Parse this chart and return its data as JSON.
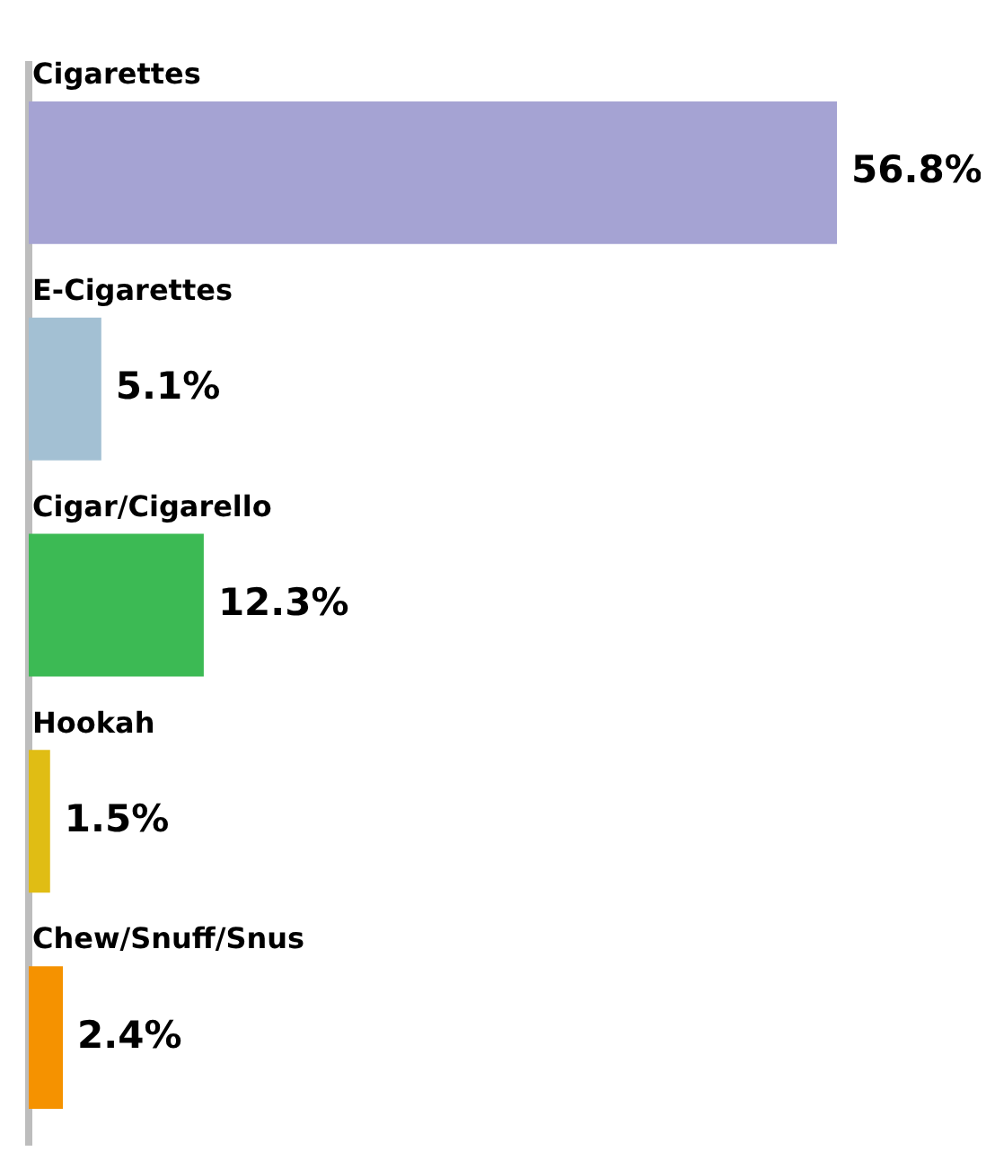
{
  "chart_data": {
    "type": "bar",
    "orientation": "horizontal",
    "categories": [
      "Cigarettes",
      "E-Cigarettes",
      "Cigar/Cigarello",
      "Hookah",
      "Chew/Snuff/Snus"
    ],
    "values": [
      56.8,
      5.1,
      12.3,
      1.5,
      2.4
    ],
    "colors": [
      "#a5a3d3",
      "#a3c0d3",
      "#3cba54",
      "#e0bd14",
      "#f59200"
    ],
    "value_labels": [
      "56.8%",
      "5.1%",
      "12.3%",
      "1.5%",
      "2.4%"
    ],
    "grid": false,
    "legend": false
  }
}
